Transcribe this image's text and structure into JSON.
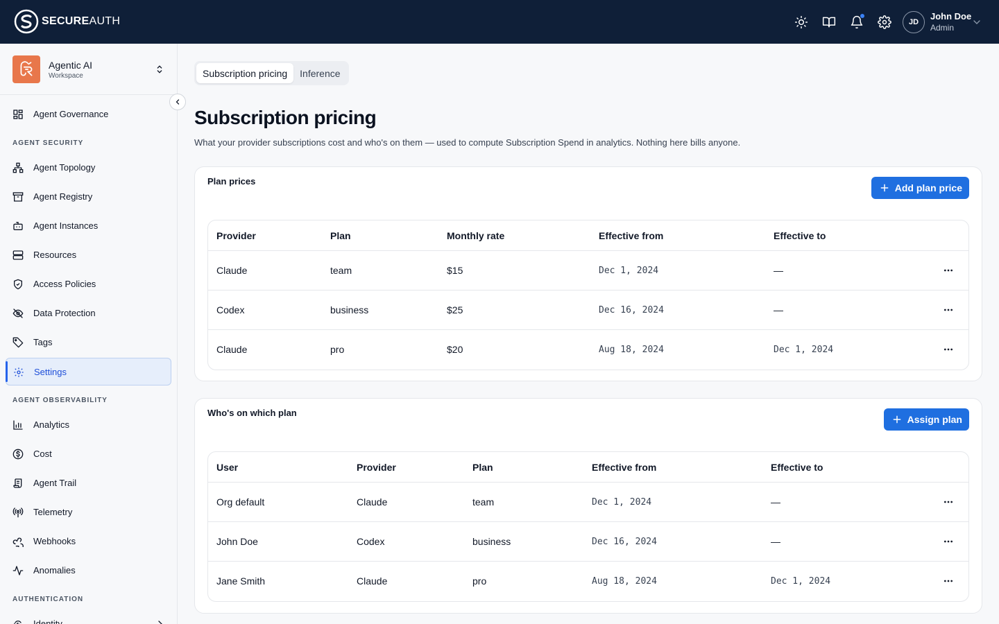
{
  "topbar": {
    "brand_bold": "SECURE",
    "brand_light": "AUTH",
    "icons": [
      "theme-icon",
      "docs-icon",
      "bell-icon",
      "settings-icon"
    ],
    "user": {
      "initials": "JD",
      "name": "John Doe",
      "role": "Admin"
    }
  },
  "sidebar": {
    "workspace": {
      "name": "Agentic AI",
      "sub": "Workspace"
    },
    "top_item": {
      "label": "Agent Governance",
      "icon": "grid-icon"
    },
    "sections": [
      {
        "title": "AGENT SECURITY"
      },
      {
        "title": "AGENT OBSERVABILITY"
      },
      {
        "title": "AUTHENTICATION"
      }
    ],
    "security_items": [
      {
        "label": "Agent Topology",
        "icon": "topology-icon"
      },
      {
        "label": "Agent Registry",
        "icon": "archive-icon"
      },
      {
        "label": "Agent Instances",
        "icon": "bot-icon"
      },
      {
        "label": "Resources",
        "icon": "server-icon"
      },
      {
        "label": "Access Policies",
        "icon": "shield-icon"
      },
      {
        "label": "Data Protection",
        "icon": "eye-off-icon"
      },
      {
        "label": "Tags",
        "icon": "tag-icon"
      },
      {
        "label": "Settings",
        "icon": "gear-icon",
        "active": true
      }
    ],
    "observability_items": [
      {
        "label": "Analytics",
        "icon": "bar-chart-icon"
      },
      {
        "label": "Cost",
        "icon": "dollar-icon"
      },
      {
        "label": "Agent Trail",
        "icon": "scroll-icon"
      },
      {
        "label": "Telemetry",
        "icon": "radio-icon"
      },
      {
        "label": "Webhooks",
        "icon": "webhook-icon"
      },
      {
        "label": "Anomalies",
        "icon": "activity-icon"
      }
    ],
    "auth_items": [
      {
        "label": "Identity",
        "icon": "fingerprint-icon"
      }
    ]
  },
  "main": {
    "tabs": [
      {
        "label": "Subscription pricing",
        "active": true
      },
      {
        "label": "Inference",
        "active": false
      }
    ],
    "title": "Subscription pricing",
    "description": "What your provider subscriptions cost and who's on them — used to compute Subscription Spend in analytics. Nothing here bills anyone.",
    "plan_prices": {
      "title": "Plan prices",
      "button": "Add plan price",
      "columns": [
        "Provider",
        "Plan",
        "Monthly rate",
        "Effective from",
        "Effective to"
      ],
      "rows": [
        {
          "provider": "Claude",
          "plan": "team",
          "rate": "$15",
          "from": "Dec 1, 2024",
          "to": "—"
        },
        {
          "provider": "Codex",
          "plan": "business",
          "rate": "$25",
          "from": "Dec 16, 2024",
          "to": "—"
        },
        {
          "provider": "Claude",
          "plan": "pro",
          "rate": "$20",
          "from": "Aug 18, 2024",
          "to": "Dec 1, 2024"
        }
      ]
    },
    "assignments": {
      "title": "Who's on which plan",
      "button": "Assign plan",
      "columns": [
        "User",
        "Provider",
        "Plan",
        "Effective from",
        "Effective to"
      ],
      "rows": [
        {
          "user": "Org default",
          "provider": "Claude",
          "plan": "team",
          "from": "Dec 1, 2024",
          "to": "—"
        },
        {
          "user": "John Doe",
          "provider": "Codex",
          "plan": "business",
          "from": "Dec 16, 2024",
          "to": "—"
        },
        {
          "user": "Jane Smith",
          "provider": "Claude",
          "plan": "pro",
          "from": "Aug 18, 2024",
          "to": "Dec 1, 2024"
        }
      ]
    }
  },
  "colors": {
    "topbar": "#0f1f38",
    "accent": "#1f6fe0",
    "workspace_logo": "#e8774b",
    "notification_dot": "#3b82f6"
  }
}
